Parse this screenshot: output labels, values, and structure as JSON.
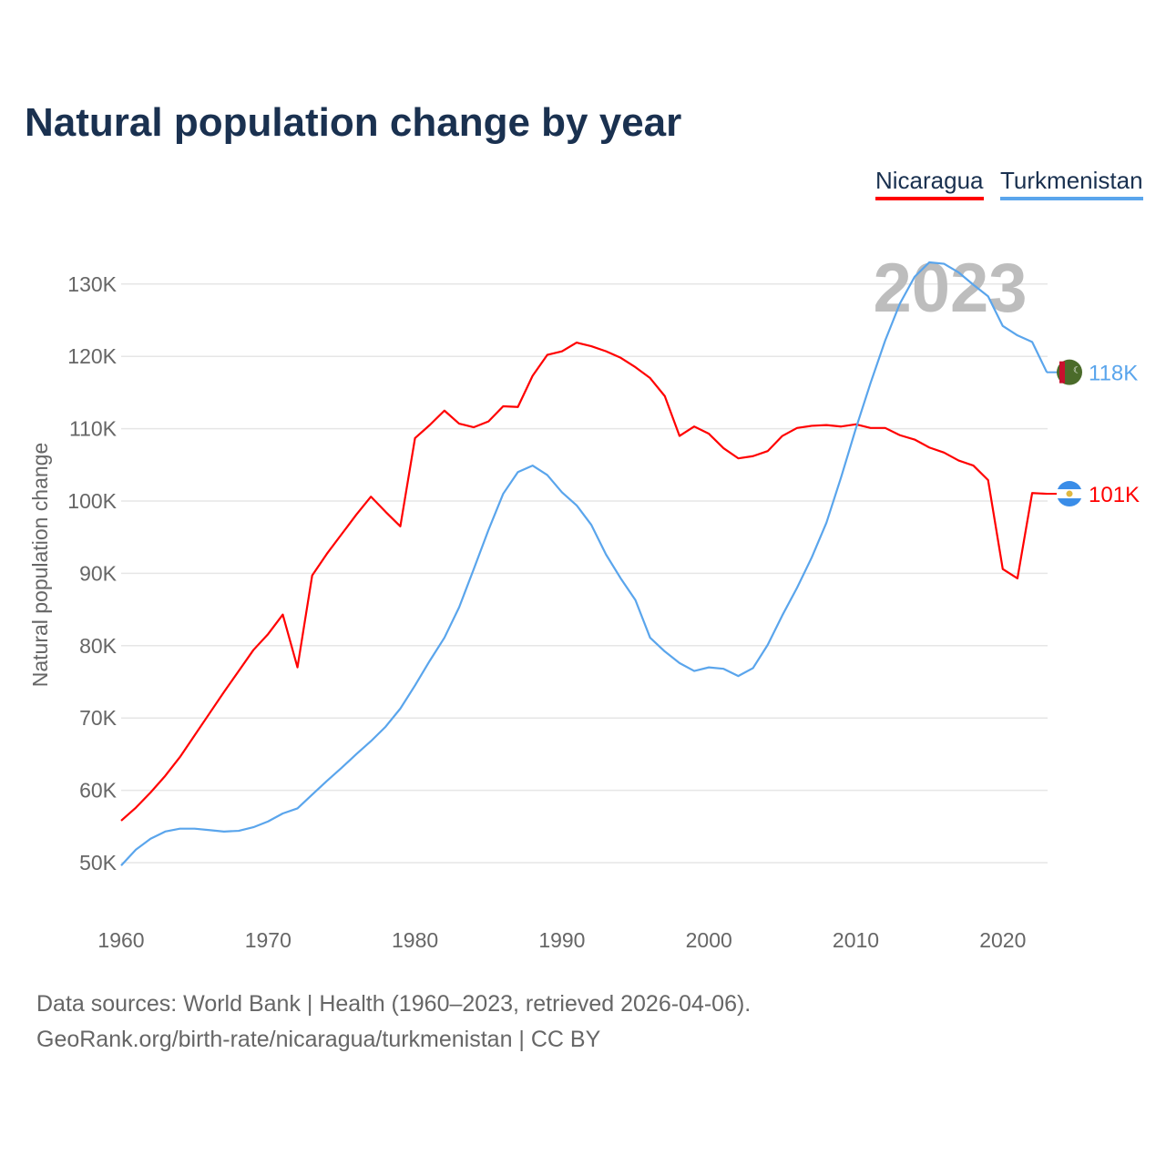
{
  "title": "Natural population change by year",
  "legend": [
    {
      "name": "Nicaragua",
      "color": "#ff0000"
    },
    {
      "name": "Turkmenistan",
      "color": "#5aa5ec"
    }
  ],
  "year_watermark": "2023",
  "footer": {
    "line1": "Data sources: World Bank | Health (1960–2023, retrieved 2026-04-06).",
    "line2": "GeoRank.org/birth-rate/nicaragua/turkmenistan | CC BY"
  },
  "chart_data": {
    "type": "line",
    "title": "Natural population change by year",
    "xlabel": "",
    "ylabel": "Natural population change",
    "xlim": [
      1960,
      2023
    ],
    "ylim": [
      50000,
      130000
    ],
    "x_ticks": [
      1960,
      1970,
      1980,
      1990,
      2000,
      2010,
      2020
    ],
    "y_ticks": [
      50000,
      60000,
      70000,
      80000,
      90000,
      100000,
      110000,
      120000,
      130000
    ],
    "y_tick_labels": [
      "50K",
      "60K",
      "70K",
      "80K",
      "90K",
      "100K",
      "110K",
      "120K",
      "130K"
    ],
    "grid": true,
    "legend_position": "top-right",
    "x": [
      1960,
      1961,
      1962,
      1963,
      1964,
      1965,
      1966,
      1967,
      1968,
      1969,
      1970,
      1971,
      1972,
      1973,
      1974,
      1975,
      1976,
      1977,
      1978,
      1979,
      1980,
      1981,
      1982,
      1983,
      1984,
      1985,
      1986,
      1987,
      1988,
      1989,
      1990,
      1991,
      1992,
      1993,
      1994,
      1995,
      1996,
      1997,
      1998,
      1999,
      2000,
      2001,
      2002,
      2003,
      2004,
      2005,
      2006,
      2007,
      2008,
      2009,
      2010,
      2011,
      2012,
      2013,
      2014,
      2015,
      2016,
      2017,
      2018,
      2019,
      2020,
      2021,
      2022,
      2023
    ],
    "series": [
      {
        "name": "Nicaragua",
        "color": "#ff0000",
        "end_label": "101K",
        "values": [
          55800,
          57600,
          59700,
          62000,
          64600,
          67600,
          70600,
          73600,
          76500,
          79400,
          81600,
          84300,
          77000,
          89700,
          92700,
          95400,
          98100,
          100600,
          98500,
          96500,
          108700,
          110500,
          112500,
          110700,
          110200,
          111000,
          113100,
          113000,
          117300,
          120200,
          120700,
          121900,
          121400,
          120700,
          119800,
          118500,
          117000,
          114500,
          109000,
          110300,
          109300,
          107300,
          105900,
          106200,
          106900,
          109000,
          110100,
          110400,
          110500,
          110300,
          110600,
          110100,
          110100,
          109100,
          108500,
          107400,
          106700,
          105600,
          104900,
          102900,
          90600,
          89300,
          101100,
          101000
        ]
      },
      {
        "name": "Turkmenistan",
        "color": "#5aa5ec",
        "end_label": "118K",
        "values": [
          49600,
          51800,
          53300,
          54300,
          54700,
          54700,
          54500,
          54300,
          54400,
          54900,
          55700,
          56800,
          57500,
          59400,
          61300,
          63100,
          65000,
          66800,
          68800,
          71300,
          74500,
          77900,
          81100,
          85300,
          90600,
          96000,
          101000,
          104000,
          104900,
          103600,
          101200,
          99400,
          96700,
          92600,
          89300,
          86300,
          81100,
          79200,
          77600,
          76500,
          77000,
          76800,
          75800,
          76900,
          80100,
          84200,
          88000,
          92200,
          97000,
          103300,
          110000,
          116300,
          122200,
          127300,
          131000,
          133000,
          132800,
          131600,
          129900,
          128300,
          124200,
          122900,
          122000,
          117800
        ]
      }
    ]
  }
}
